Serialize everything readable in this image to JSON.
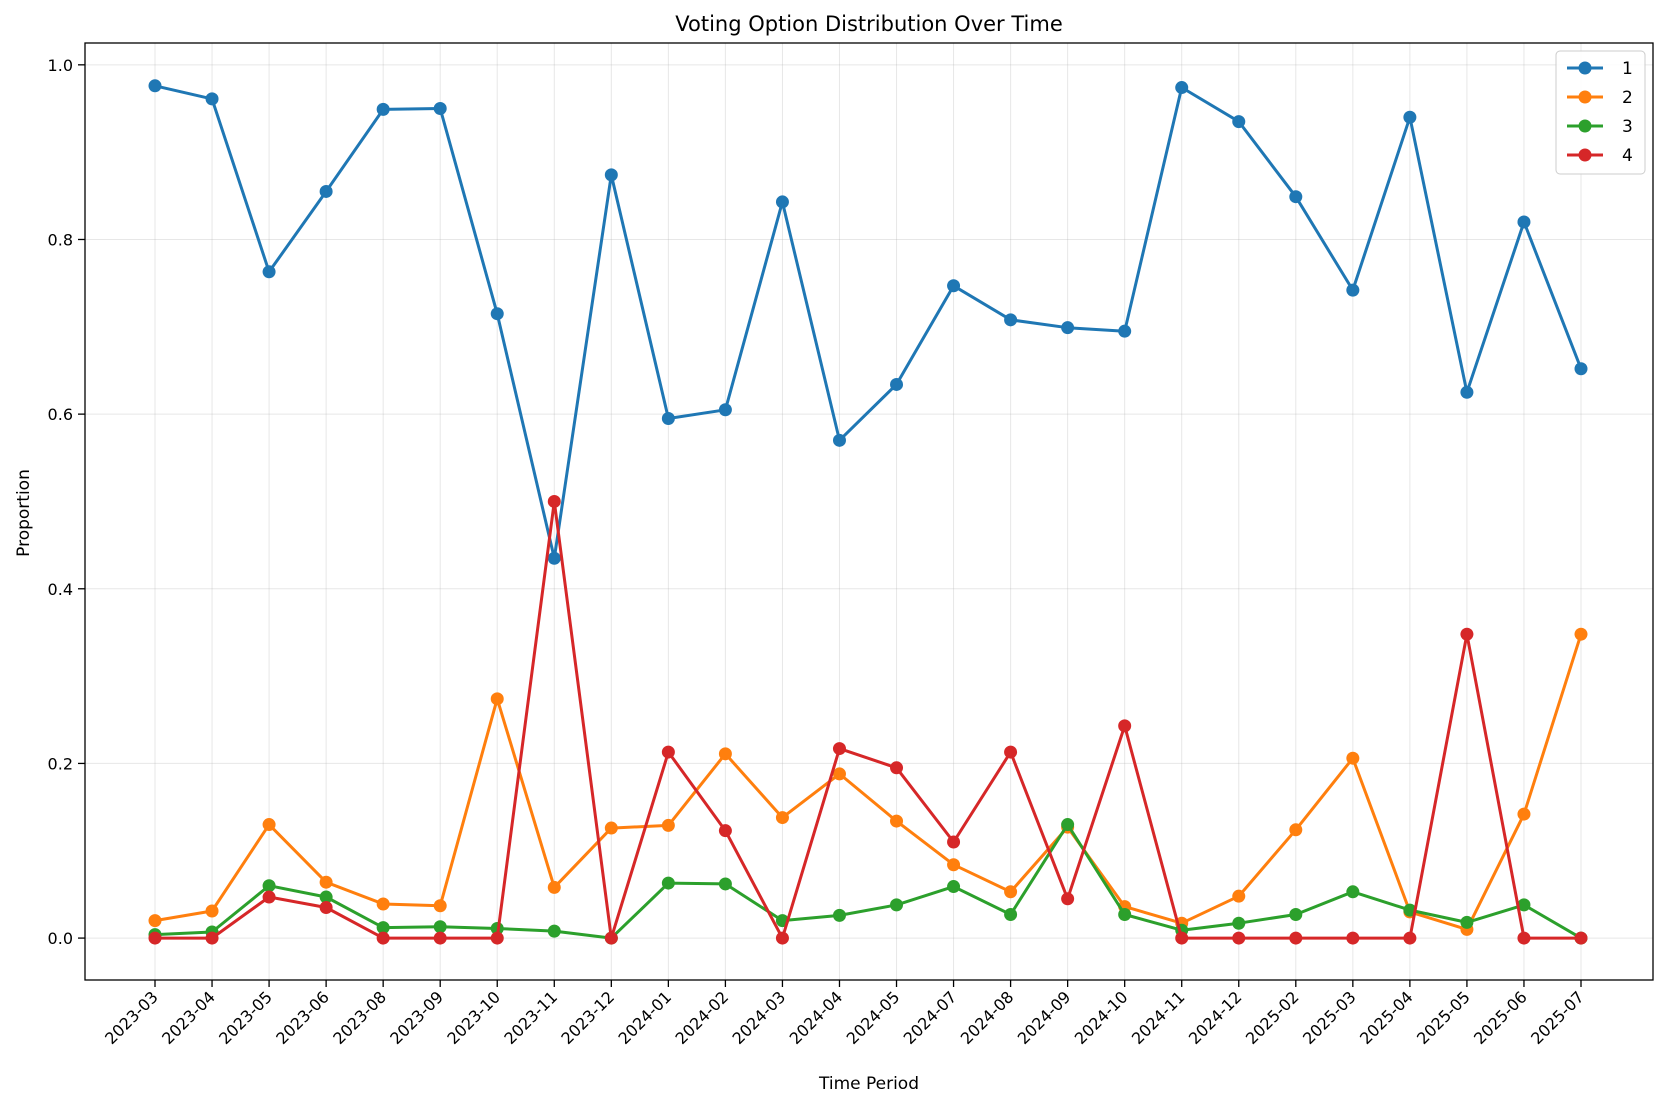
{
  "chart_data": {
    "type": "line",
    "title": "Voting Option Distribution Over Time",
    "xlabel": "Time Period",
    "ylabel": "Proportion",
    "ylim": [
      -0.048,
      1.025
    ],
    "yticks": [
      0.0,
      0.2,
      0.4,
      0.6,
      0.8,
      1.0
    ],
    "ytick_labels": [
      "0.0",
      "0.2",
      "0.4",
      "0.6",
      "0.8",
      "1.0"
    ],
    "grid": true,
    "legend_position": "top-right",
    "categories": [
      "2023-03",
      "2023-04",
      "2023-05",
      "2023-06",
      "2023-08",
      "2023-09",
      "2023-10",
      "2023-11",
      "2023-12",
      "2024-01",
      "2024-02",
      "2024-03",
      "2024-04",
      "2024-05",
      "2024-07",
      "2024-08",
      "2024-09",
      "2024-10",
      "2024-11",
      "2024-12",
      "2025-02",
      "2025-03",
      "2025-04",
      "2025-05",
      "2025-06",
      "2025-07"
    ],
    "series": [
      {
        "name": "1",
        "color": "#1f77b4",
        "values": [
          0.976,
          0.961,
          0.763,
          0.855,
          0.949,
          0.95,
          0.715,
          0.435,
          0.874,
          0.595,
          0.605,
          0.843,
          0.57,
          0.634,
          0.747,
          0.708,
          0.699,
          0.695,
          0.974,
          0.935,
          0.849,
          0.742,
          0.94,
          0.625,
          0.82,
          0.652
        ]
      },
      {
        "name": "2",
        "color": "#ff7f0e",
        "values": [
          0.02,
          0.031,
          0.13,
          0.064,
          0.039,
          0.037,
          0.274,
          0.058,
          0.126,
          0.129,
          0.211,
          0.138,
          0.188,
          0.134,
          0.084,
          0.053,
          0.127,
          0.036,
          0.017,
          0.048,
          0.124,
          0.206,
          0.03,
          0.01,
          0.142,
          0.348
        ]
      },
      {
        "name": "3",
        "color": "#2ca02c",
        "values": [
          0.004,
          0.007,
          0.06,
          0.047,
          0.012,
          0.013,
          0.011,
          0.008,
          0.0,
          0.063,
          0.062,
          0.02,
          0.026,
          0.038,
          0.059,
          0.027,
          0.13,
          0.027,
          0.009,
          0.017,
          0.027,
          0.053,
          0.032,
          0.018,
          0.038,
          0.0
        ]
      },
      {
        "name": "4",
        "color": "#d62728",
        "values": [
          0.0,
          0.0,
          0.047,
          0.035,
          0.0,
          0.0,
          0.0,
          0.5,
          0.0,
          0.213,
          0.123,
          0.0,
          0.217,
          0.195,
          0.11,
          0.213,
          0.045,
          0.243,
          0.0,
          0.0,
          0.0,
          0.0,
          0.0,
          0.348,
          0.0,
          0.0
        ]
      }
    ]
  }
}
